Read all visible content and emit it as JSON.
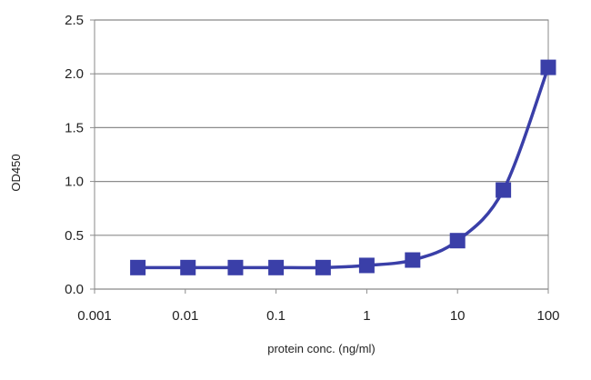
{
  "chart_data": {
    "type": "line",
    "title": "",
    "xlabel": "protein conc. (ng/ml)",
    "ylabel": "OD450",
    "x_scale": "log",
    "xlim": [
      0.001,
      100
    ],
    "ylim": [
      0,
      2.5
    ],
    "x_ticks": [
      0.001,
      0.01,
      0.1,
      1,
      10,
      100
    ],
    "x_tick_labels": [
      "0.001",
      "0.01",
      "0.1",
      "1",
      "10",
      "100"
    ],
    "y_ticks": [
      0,
      0.5,
      1.0,
      1.5,
      2.0,
      2.5
    ],
    "y_tick_labels": [
      "0.0",
      "0.5",
      "1.0",
      "1.5",
      "2.0",
      "2.5"
    ],
    "grid": "horizontal",
    "legend": "none",
    "series": [
      {
        "color": "#3a3fa8",
        "marker": "square",
        "smooth": true,
        "x": [
          0.003,
          0.0107,
          0.0357,
          0.1,
          0.33,
          1,
          3.2,
          10,
          32,
          100
        ],
        "y": [
          0.2,
          0.2,
          0.2,
          0.2,
          0.2,
          0.22,
          0.27,
          0.45,
          0.92,
          2.06
        ]
      }
    ]
  }
}
